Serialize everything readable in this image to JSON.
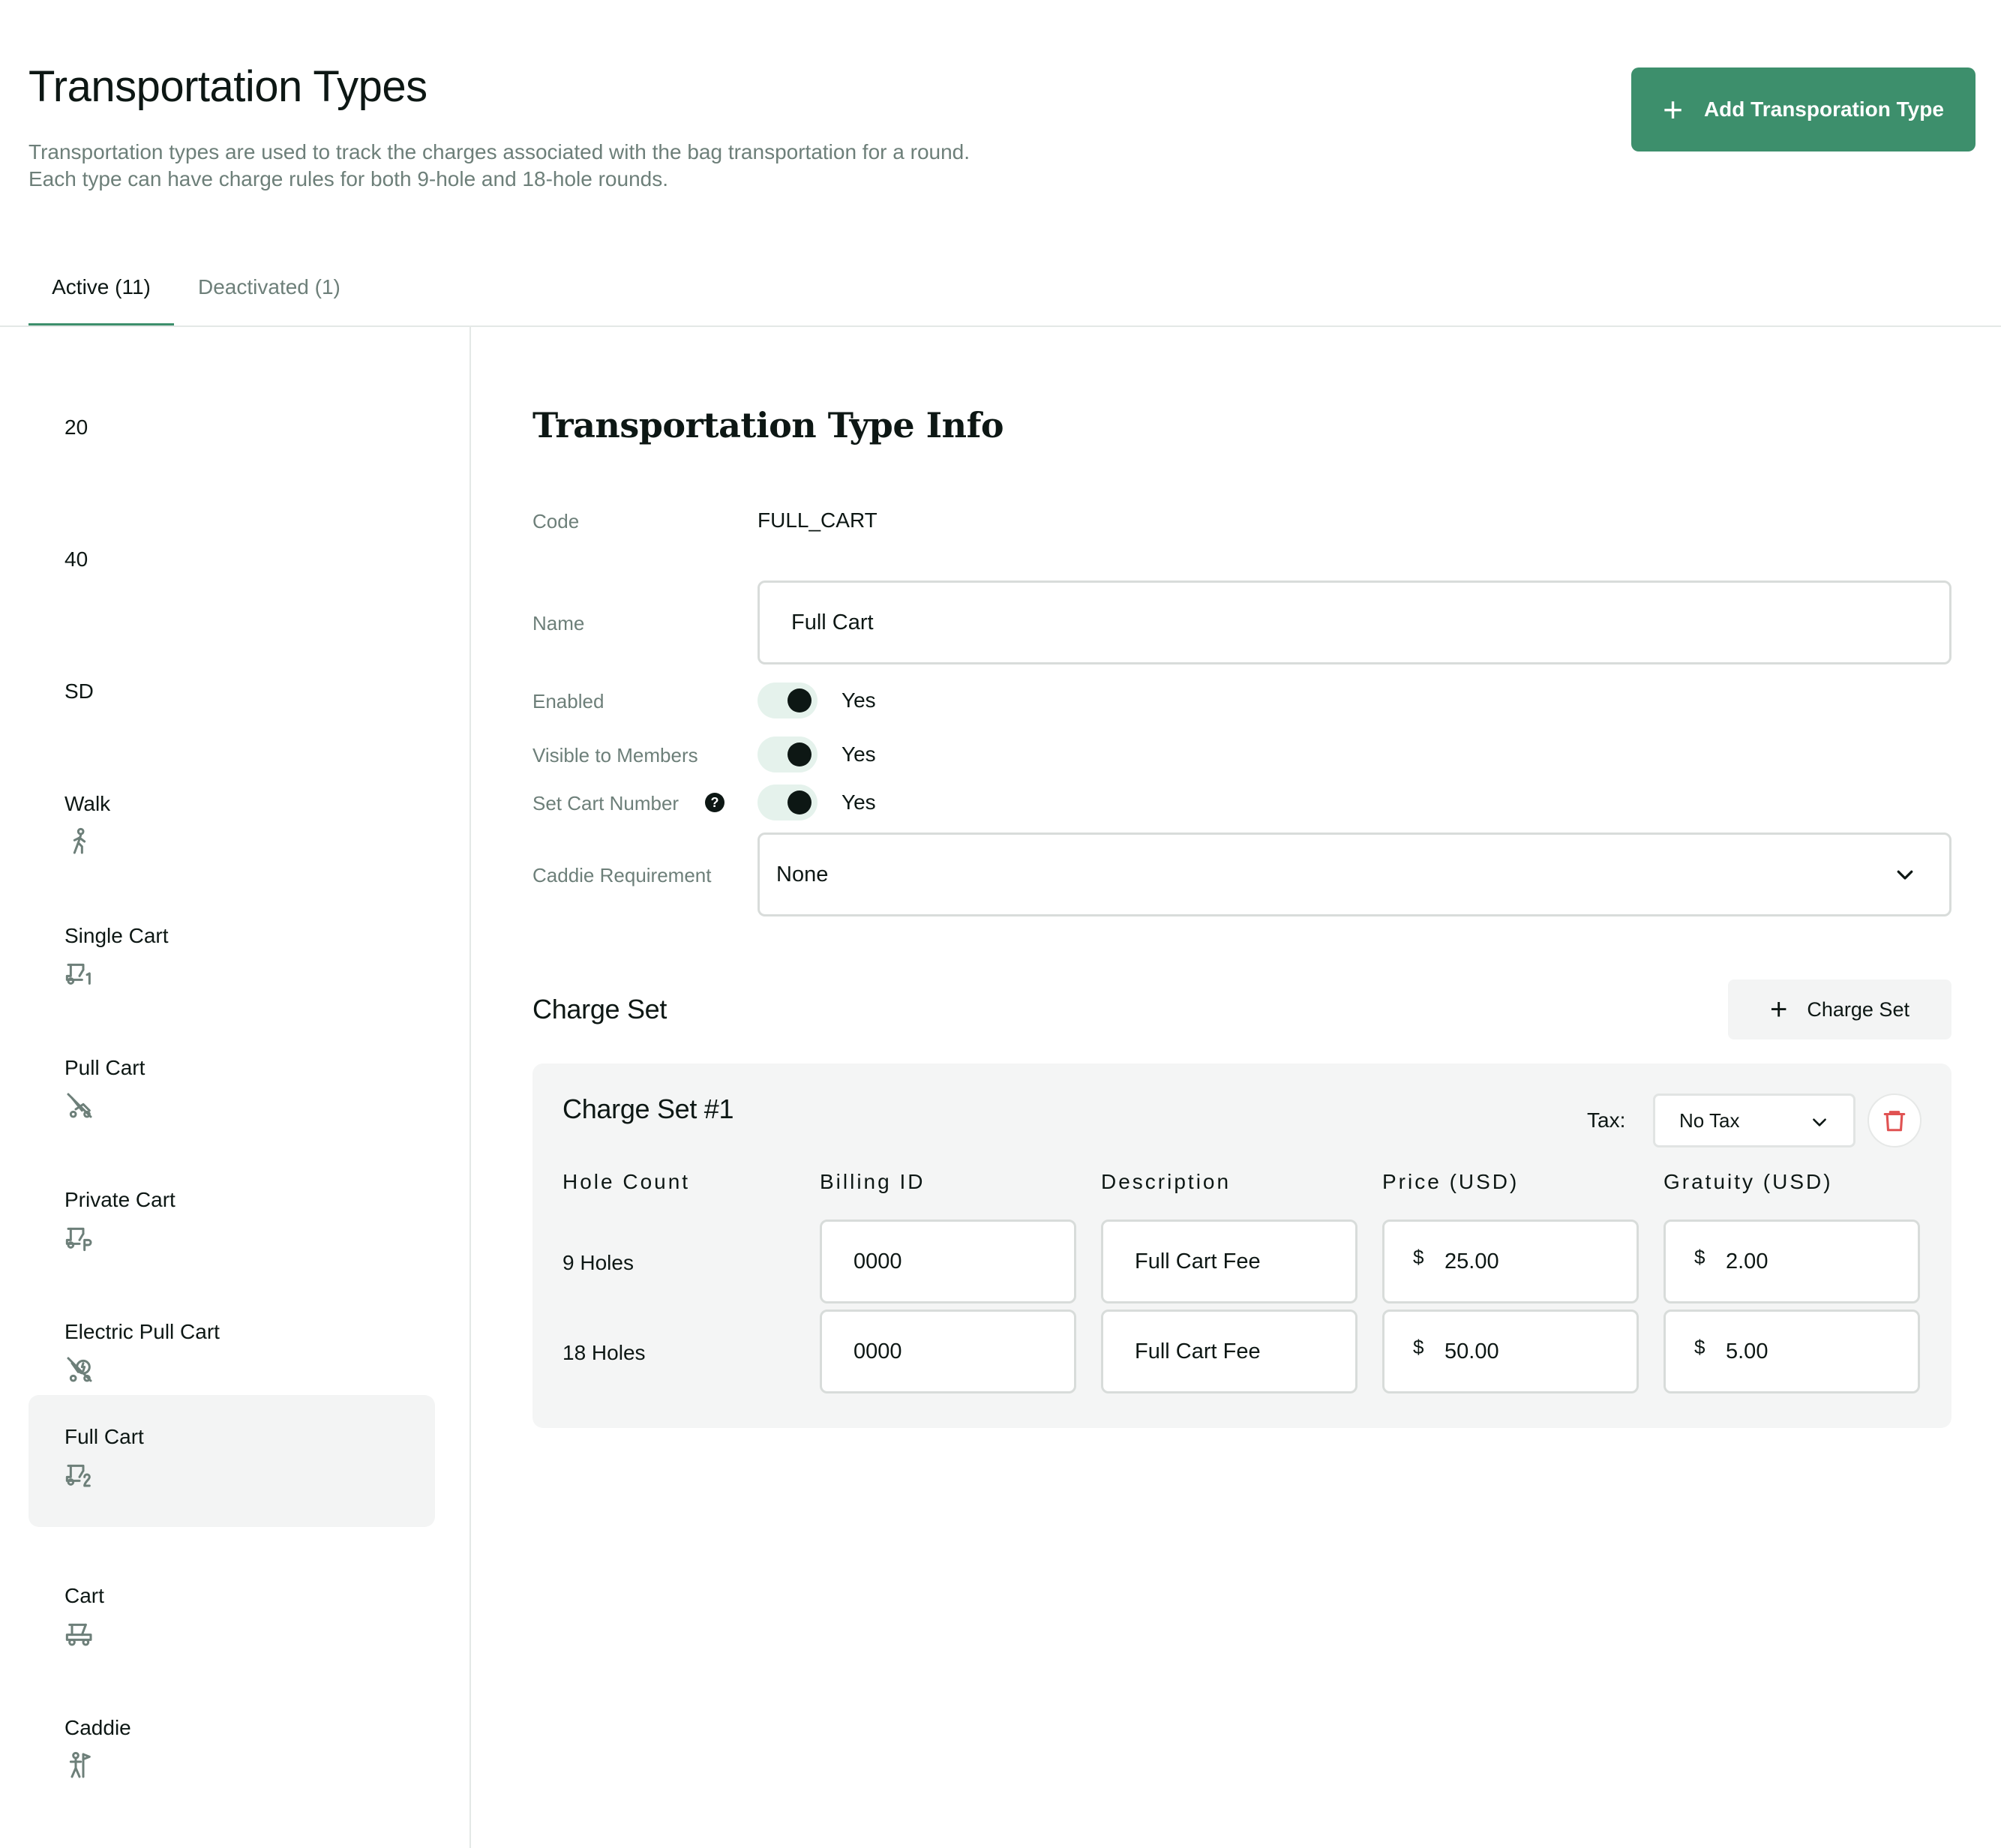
{
  "header": {
    "title": "Transportation Types",
    "description": "Transportation types are used to track the charges associated with the bag transportation for a round. Each type can have charge rules for both 9-hole and 18-hole rounds.",
    "add_button_label": "Add Transporation Type"
  },
  "tabs": [
    {
      "label": "Active (11)",
      "active": true
    },
    {
      "label": "Deactivated (1)",
      "active": false
    }
  ],
  "sidebar": {
    "items": [
      {
        "label": "20",
        "icon": null
      },
      {
        "label": "40",
        "icon": null
      },
      {
        "label": "SD",
        "icon": null
      },
      {
        "label": "Walk",
        "icon": "walk-icon"
      },
      {
        "label": "Single Cart",
        "icon": "single-cart-icon"
      },
      {
        "label": "Pull Cart",
        "icon": "pull-cart-icon"
      },
      {
        "label": "Private Cart",
        "icon": "private-cart-icon"
      },
      {
        "label": "Electric Pull Cart",
        "icon": "electric-pull-cart-icon"
      },
      {
        "label": "Full Cart",
        "icon": "full-cart-icon",
        "selected": true
      },
      {
        "label": "Cart",
        "icon": "cart-icon"
      },
      {
        "label": "Caddie",
        "icon": "caddie-icon"
      }
    ]
  },
  "info": {
    "title": "Transportation Type Info",
    "code_label": "Code",
    "code_value": "FULL_CART",
    "name_label": "Name",
    "name_value": "Full Cart",
    "enabled_label": "Enabled",
    "enabled_value": "Yes",
    "visible_label": "Visible to Members",
    "visible_value": "Yes",
    "cart_number_label": "Set Cart Number",
    "cart_number_value": "Yes",
    "caddie_label": "Caddie Requirement",
    "caddie_value": "None"
  },
  "charge_set": {
    "section_title": "Charge Set",
    "add_button_label": "Charge Set",
    "card_title": "Charge Set #1",
    "tax_label": "Tax:",
    "tax_value": "No Tax",
    "columns": [
      "Hole Count",
      "Billing ID",
      "Description",
      "Price (USD)",
      "Gratuity (USD)"
    ],
    "currency_symbol": "$",
    "rows": [
      {
        "hole_count": "9 Holes",
        "billing_id": "0000",
        "description": "Full Cart Fee",
        "price": "25.00",
        "gratuity": "2.00"
      },
      {
        "hole_count": "18 Holes",
        "billing_id": "0000",
        "description": "Full Cart Fee",
        "price": "50.00",
        "gratuity": "5.00"
      }
    ]
  },
  "colors": {
    "accent": "#3d8f6c",
    "toggle_track": "#e5f2ec",
    "delete": "#e05252"
  }
}
